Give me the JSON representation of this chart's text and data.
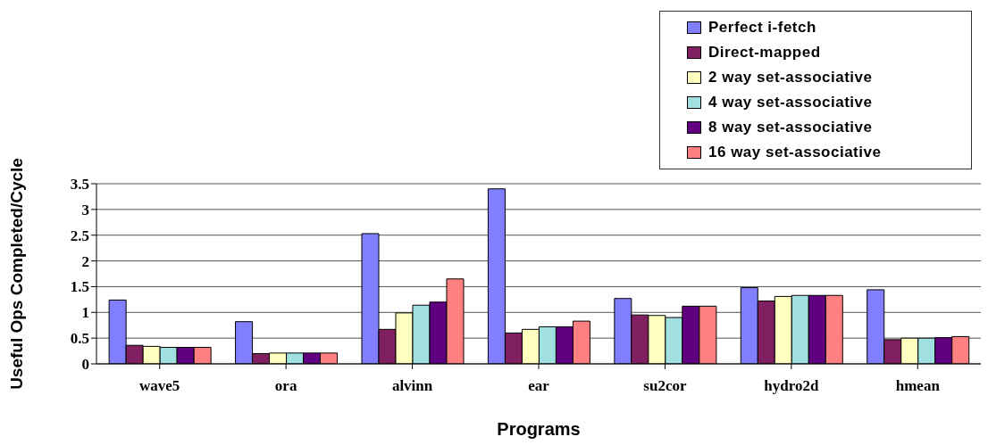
{
  "chart_data": {
    "type": "bar",
    "xlabel": "Programs",
    "ylabel": "Useful Ops Completed/Cycle",
    "categories": [
      "wave5",
      "ora",
      "alvinn",
      "ear",
      "su2cor",
      "hydro2d",
      "hmean"
    ],
    "series": [
      {
        "name": "Perfect i-fetch",
        "color": "#8080ff",
        "values": [
          1.24,
          0.82,
          2.53,
          3.4,
          1.27,
          1.48,
          1.44
        ]
      },
      {
        "name": "Direct-mapped",
        "color": "#802060",
        "values": [
          0.36,
          0.2,
          0.67,
          0.6,
          0.95,
          1.22,
          0.47
        ]
      },
      {
        "name": "2 way set-associative",
        "color": "#ffffc0",
        "values": [
          0.34,
          0.21,
          0.99,
          0.67,
          0.94,
          1.31,
          0.5
        ]
      },
      {
        "name": "4 way set-associative",
        "color": "#a0e0e0",
        "values": [
          0.32,
          0.21,
          1.14,
          0.72,
          0.9,
          1.33,
          0.5
        ]
      },
      {
        "name": "8 way set-associative",
        "color": "#600080",
        "values": [
          0.32,
          0.21,
          1.2,
          0.72,
          1.12,
          1.33,
          0.51
        ]
      },
      {
        "name": "16 way set-associative",
        "color": "#ff8080",
        "values": [
          0.32,
          0.21,
          1.65,
          0.83,
          1.12,
          1.33,
          0.53
        ]
      }
    ],
    "ylim": [
      0,
      3.5
    ],
    "yticks": [
      0,
      0.5,
      1,
      1.5,
      2,
      2.5,
      3,
      3.5
    ],
    "grid": "y",
    "legend": "top right"
  }
}
